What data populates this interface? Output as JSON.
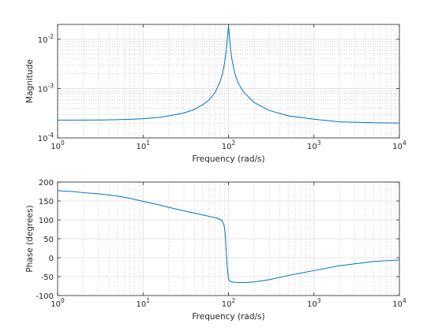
{
  "chart_data": [
    {
      "type": "line",
      "xscale": "log",
      "yscale": "log",
      "xlim": [
        1,
        10000
      ],
      "ylim": [
        0.0001,
        0.02
      ],
      "grid": true,
      "minor_grid": true,
      "xlabel": "Frequency (rad/s)",
      "ylabel": "Magnitude",
      "x_ticks": [
        {
          "value": 1,
          "base": "10",
          "exp": "0"
        },
        {
          "value": 10,
          "base": "10",
          "exp": "1"
        },
        {
          "value": 100,
          "base": "10",
          "exp": "2"
        },
        {
          "value": 1000,
          "base": "10",
          "exp": "3"
        },
        {
          "value": 10000,
          "base": "10",
          "exp": "4"
        }
      ],
      "y_ticks": [
        {
          "value": 0.0001,
          "base": "10",
          "exp": "-4"
        },
        {
          "value": 0.001,
          "base": "10",
          "exp": "-3"
        },
        {
          "value": 0.01,
          "base": "10",
          "exp": "-2"
        }
      ],
      "series": [
        {
          "color": "#0072bd",
          "x": [
            1,
            2,
            3,
            5,
            7,
            10,
            15,
            20,
            30,
            40,
            50,
            60,
            70,
            80,
            85,
            90,
            93,
            95,
            97,
            98,
            99,
            100,
            101,
            102,
            103,
            105,
            107,
            110,
            115,
            120,
            130,
            150,
            200,
            300,
            500,
            1000,
            2000,
            5000,
            10000
          ],
          "y": [
            0.00023,
            0.00023,
            0.000231,
            0.000234,
            0.000238,
            0.000245,
            0.00026,
            0.00028,
            0.00032,
            0.00038,
            0.00047,
            0.0006,
            0.00085,
            0.0014,
            0.002,
            0.0033,
            0.005,
            0.007,
            0.0105,
            0.013,
            0.016,
            0.0175,
            0.016,
            0.013,
            0.0105,
            0.0072,
            0.0054,
            0.0038,
            0.0026,
            0.0019,
            0.0013,
            0.00085,
            0.00052,
            0.00036,
            0.00028,
            0.00024,
            0.000212,
            0.000203,
            0.0002
          ]
        }
      ]
    },
    {
      "type": "line",
      "xscale": "log",
      "xlim": [
        1,
        10000
      ],
      "ylim": [
        -100,
        200
      ],
      "grid": true,
      "minor_grid": true,
      "xlabel": "Frequency (rad/s)",
      "ylabel": "Phase (degrees)",
      "x_ticks": [
        {
          "value": 1,
          "base": "10",
          "exp": "0"
        },
        {
          "value": 10,
          "base": "10",
          "exp": "1"
        },
        {
          "value": 100,
          "base": "10",
          "exp": "2"
        },
        {
          "value": 1000,
          "base": "10",
          "exp": "3"
        },
        {
          "value": 10000,
          "base": "10",
          "exp": "4"
        }
      ],
      "y_ticks": [
        -100,
        -50,
        0,
        50,
        100,
        150,
        200
      ],
      "series": [
        {
          "color": "#0072bd",
          "x": [
            1,
            1.5,
            2,
            3,
            5,
            7,
            10,
            15,
            20,
            30,
            40,
            50,
            60,
            70,
            80,
            85,
            88,
            90,
            92,
            94,
            96,
            98,
            100,
            102,
            105,
            110,
            120,
            150,
            200,
            300,
            500,
            1000,
            2000,
            5000,
            10000
          ],
          "y": [
            177,
            175,
            172,
            169,
            163,
            157,
            149,
            140,
            133,
            124,
            118,
            113,
            109,
            106,
            101,
            96,
            88,
            78,
            55,
            20,
            -15,
            -40,
            -55,
            -60,
            -63,
            -64,
            -65,
            -66,
            -64,
            -58,
            -47,
            -34,
            -21,
            -10,
            -6
          ]
        }
      ]
    }
  ]
}
